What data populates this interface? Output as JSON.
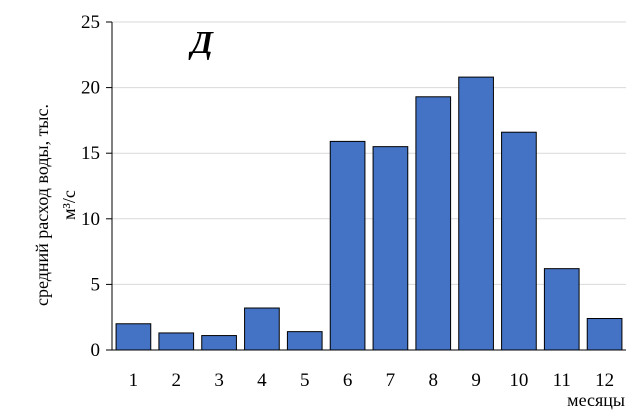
{
  "chart_data": {
    "type": "bar",
    "panel_label": "Д",
    "categories": [
      "1",
      "2",
      "3",
      "4",
      "5",
      "6",
      "7",
      "8",
      "9",
      "10",
      "11",
      "12"
    ],
    "values": [
      2.0,
      1.3,
      1.1,
      3.2,
      1.4,
      15.9,
      15.5,
      19.3,
      20.8,
      16.6,
      6.2,
      2.4
    ],
    "ylabel_line1": "средний расход воды, тыс.",
    "ylabel_line2": "м³/с",
    "xlabel": "месяцы",
    "ylim": [
      0,
      25
    ],
    "yticks": [
      "0",
      "5",
      "10",
      "15",
      "20",
      "25"
    ],
    "grid": true,
    "colors": {
      "bar_fill": "#4472C4",
      "bar_stroke": "#000000",
      "grid": "#d9d9d9",
      "axis": "#000000"
    }
  }
}
